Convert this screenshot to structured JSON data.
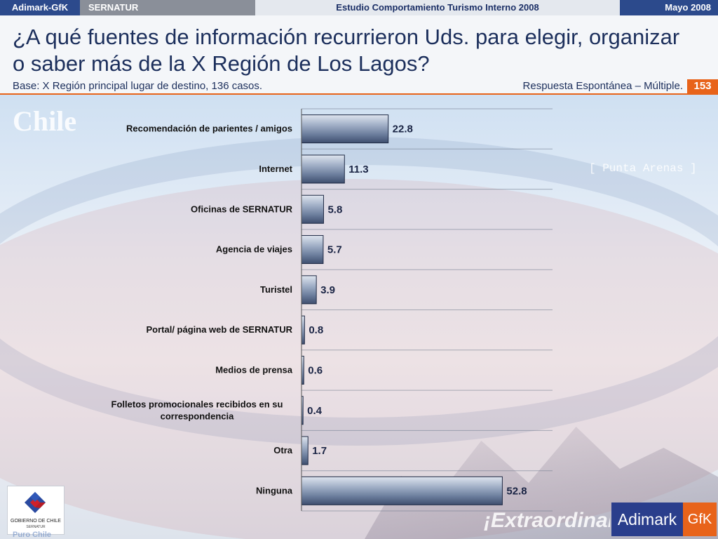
{
  "topbar": {
    "brand": "Adimark-GfK",
    "client": "SERNATUR",
    "study": "Estudio Comportamiento Turismo Interno 2008",
    "date": "Mayo 2008"
  },
  "header": {
    "title": "¿A qué fuentes de información recurrieron Uds. para elegir, organizar o saber más de la X Región de Los Lagos?",
    "base": "Base: X Región principal lugar de destino, 136 casos.",
    "response_type": "Respuesta Espontánea – Múltiple.",
    "page_number": "153"
  },
  "background_texts": {
    "chile": "Chile",
    "city": "[ Punta Arenas ]",
    "extra": "¡Extraordinario!",
    "puro": "Puro Chile"
  },
  "logos": {
    "gobierno_line1": "GOBIERNO DE CHILE",
    "gobierno_line2": "SERNATUR",
    "adimark": "Adimark",
    "gfk": "GfK"
  },
  "colors": {
    "accent_orange": "#e8631a",
    "brand_blue": "#2c4a8c",
    "bar_fill": "#7688a8"
  },
  "chart_data": {
    "type": "bar",
    "orientation": "horizontal",
    "categories": [
      "Recomendación de parientes / amigos",
      "Internet",
      "Oficinas de SERNATUR",
      "Agencia de viajes",
      "Turistel",
      "Portal/ página web de SERNATUR",
      "Medios de prensa",
      "Folletos promocionales recibidos en su correspondencia",
      "Otra",
      "Ninguna"
    ],
    "category_lines": [
      [
        "Recomendación de parientes / amigos"
      ],
      [
        "Internet"
      ],
      [
        "Oficinas de SERNATUR"
      ],
      [
        "Agencia de viajes"
      ],
      [
        "Turistel"
      ],
      [
        "Portal/ página web de SERNATUR"
      ],
      [
        "Medios de prensa"
      ],
      [
        "Folletos promocionales recibidos en su",
        "correspondencia"
      ],
      [
        "Otra"
      ],
      [
        "Ninguna"
      ]
    ],
    "values": [
      22.8,
      11.3,
      5.8,
      5.7,
      3.9,
      0.8,
      0.6,
      0.4,
      1.7,
      52.8
    ],
    "value_labels": [
      "22.8",
      "11.3",
      "5.8",
      "5.7",
      "3.9",
      "0.8",
      "0.6",
      "0.4",
      "1.7",
      "52.8"
    ],
    "xlim": [
      0,
      66
    ],
    "grid": true,
    "legend": "none",
    "title": "",
    "xlabel": "",
    "ylabel": ""
  }
}
